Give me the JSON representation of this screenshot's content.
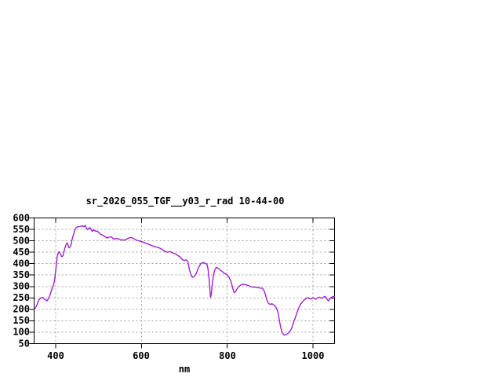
{
  "title": "sr_2026_055_TGF__y03_r_rad 10-44-00",
  "colors": {
    "line": "#a020d0",
    "grid": "#a0a0a0",
    "frame": "#000000",
    "background": "#ffffff",
    "text": "#000000"
  },
  "chart_data": {
    "type": "line",
    "title": "sr_2026_055_TGF__y03_r_rad 10-44-00",
    "xlabel": "nm",
    "ylabel": "",
    "xlim": [
      350,
      1050
    ],
    "ylim": [
      50,
      600
    ],
    "grid": true,
    "grid_style": "dashed",
    "legend": "none",
    "x_tick_labels": [
      "400",
      "600",
      "800",
      "1000"
    ],
    "x_tick_values": [
      400,
      600,
      800,
      1000
    ],
    "y_tick_labels": [
      "600",
      "550",
      "500",
      "450",
      "400",
      "350",
      "300",
      "250",
      "200",
      "150",
      "100",
      "50"
    ],
    "y_tick_values": [
      600,
      550,
      500,
      450,
      400,
      350,
      300,
      250,
      200,
      150,
      100,
      50
    ],
    "series": [
      {
        "name": "sr_2026_055_TGF__y03_r_rad",
        "color": "#a020d0",
        "x": [
          350,
          353,
          356,
          359,
          362,
          365,
          368,
          371,
          374,
          377,
          380,
          382,
          385,
          388,
          390,
          393,
          396,
          398,
          400,
          402,
          404,
          406,
          408,
          410,
          412,
          414,
          416,
          418,
          420,
          422,
          424,
          426,
          428,
          430,
          432,
          434,
          436,
          438,
          440,
          442,
          444,
          446,
          448,
          451,
          454,
          457,
          460,
          463,
          465,
          467,
          469,
          471,
          473,
          475,
          477,
          479,
          481,
          483,
          486,
          488,
          491,
          494,
          497,
          500,
          505,
          510,
          515,
          520,
          525,
          530,
          535,
          540,
          545,
          550,
          555,
          560,
          565,
          570,
          575,
          579,
          586,
          593,
          600,
          608,
          615,
          624,
          632,
          640,
          648,
          654,
          660,
          666,
          673,
          680,
          686,
          690,
          695,
          700,
          704,
          708,
          712,
          716,
          719,
          723,
          728,
          733,
          738,
          743,
          748,
          753,
          755,
          757,
          759,
          761,
          763,
          765,
          768,
          771,
          774,
          778,
          783,
          788,
          793,
          798,
          803,
          808,
          812,
          815,
          817,
          820,
          823,
          827,
          832,
          837,
          842,
          848,
          855,
          862,
          870,
          877,
          882,
          886,
          889,
          892,
          895,
          898,
          901,
          904,
          907,
          910,
          913,
          916,
          919,
          922,
          925,
          928,
          931,
          934,
          937,
          940,
          943,
          946,
          949,
          952,
          955,
          958,
          961,
          964,
          967,
          970,
          973,
          976,
          979,
          982,
          985,
          988,
          991,
          994,
          997,
          1000,
          1003,
          1006,
          1009,
          1012,
          1015,
          1018,
          1021,
          1024,
          1027,
          1030,
          1033,
          1036,
          1039,
          1042,
          1045,
          1048,
          1050
        ],
        "y": [
          201,
          206,
          217,
          232,
          243,
          249,
          252,
          251,
          245,
          241,
          237,
          242,
          253,
          268,
          281,
          298,
          312,
          335,
          365,
          400,
          432,
          445,
          452,
          447,
          441,
          431,
          432,
          438,
          456,
          470,
          481,
          490,
          489,
          473,
          469,
          475,
          481,
          502,
          515,
          528,
          542,
          552,
          557,
          561,
          562,
          563,
          564,
          566,
          561,
          563,
          568,
          560,
          552,
          549,
          555,
          557,
          556,
          549,
          541,
          547,
          546,
          541,
          543,
          537,
          528,
          524,
          519,
          512,
          516,
          517,
          508,
          509,
          510,
          505,
          504,
          503,
          507,
          512,
          514,
          513,
          505,
          500,
          497,
          491,
          486,
          479,
          474,
          470,
          463,
          455,
          450,
          453,
          447,
          442,
          434,
          430,
          418,
          413,
          417,
          410,
          372,
          347,
          340,
          344,
          357,
          383,
          399,
          405,
          402,
          396,
          379,
          345,
          300,
          252,
          268,
          310,
          350,
          372,
          383,
          381,
          373,
          366,
          358,
          353,
          344,
          326,
          299,
          278,
          273,
          280,
          290,
          300,
          307,
          310,
          308,
          305,
          299,
          297,
          296,
          293,
          292,
          281,
          265,
          242,
          229,
          224,
          221,
          225,
          220,
          218,
          211,
          199,
          180,
          146,
          118,
          99,
          90,
          87,
          89,
          93,
          97,
          104,
          113,
          127,
          146,
          161,
          177,
          193,
          207,
          220,
          228,
          235,
          241,
          245,
          248,
          251,
          248,
          245,
          247,
          251,
          248,
          244,
          249,
          252,
          253,
          250,
          249,
          253,
          257,
          253,
          243,
          237,
          246,
          252,
          255,
          257,
          256
        ]
      }
    ]
  }
}
